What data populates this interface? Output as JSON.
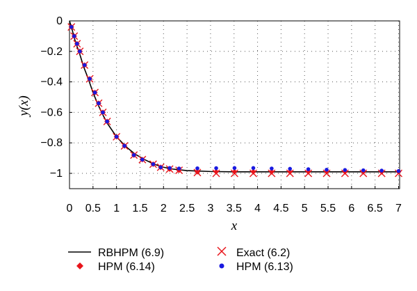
{
  "chart_data": {
    "type": "line",
    "xlabel": "x",
    "ylabel": "y(x)",
    "xlim": [
      0,
      7
    ],
    "ylim": [
      -1.1,
      0
    ],
    "x_ticks": [
      0,
      0.5,
      1,
      1.5,
      2,
      2.5,
      3,
      3.5,
      4,
      4.5,
      5,
      5.5,
      6,
      6.5,
      7
    ],
    "y_ticks": [
      0,
      -0.2,
      -0.4,
      -0.6,
      -0.8,
      -1
    ],
    "grid": true,
    "legend_position": "bottom",
    "series": [
      {
        "name": "RBHPM (6.9)",
        "style": "line",
        "color": "#000000",
        "x": [
          0,
          0.05,
          0.1,
          0.15,
          0.2,
          0.3,
          0.4,
          0.5,
          0.6,
          0.7,
          0.8,
          1.0,
          1.2,
          1.4,
          1.6,
          1.8,
          2.0,
          2.2,
          2.5,
          3.0,
          3.5,
          4.0,
          4.5,
          5.0,
          5.5,
          6.0,
          6.5,
          7.0
        ],
        "y": [
          0,
          -0.05,
          -0.11,
          -0.16,
          -0.2,
          -0.3,
          -0.38,
          -0.47,
          -0.545,
          -0.61,
          -0.67,
          -0.76,
          -0.825,
          -0.875,
          -0.91,
          -0.94,
          -0.96,
          -0.972,
          -0.982,
          -0.988,
          -0.99,
          -0.99,
          -0.99,
          -0.99,
          -0.99,
          -0.99,
          -0.99,
          -0.99
        ]
      },
      {
        "name": "Exact (6.2)",
        "style": "x-marker",
        "color": "#e8141a",
        "x": [
          0.04,
          0.1,
          0.16,
          0.22,
          0.32,
          0.43,
          0.54,
          0.62,
          0.71,
          0.8,
          1.0,
          1.17,
          1.37,
          1.55,
          1.78,
          1.94,
          2.13,
          2.33,
          2.72,
          3.12,
          3.51,
          3.91,
          4.3,
          4.69,
          5.08,
          5.47,
          5.86,
          6.25,
          6.64,
          7.0
        ],
        "y": [
          -0.04,
          -0.1,
          -0.15,
          -0.2,
          -0.29,
          -0.38,
          -0.47,
          -0.54,
          -0.6,
          -0.66,
          -0.76,
          -0.82,
          -0.88,
          -0.91,
          -0.94,
          -0.96,
          -0.972,
          -0.98,
          -0.995,
          -1.0,
          -1.0,
          -1.0,
          -1.0,
          -1.0,
          -1.0,
          -1.0,
          -1.0,
          -1.0,
          -1.0,
          -1.0
        ]
      },
      {
        "name": "HPM (6.14)",
        "style": "diamond-marker",
        "color": "#e8141a",
        "x": [
          0.04,
          0.1,
          0.16,
          0.22,
          0.32,
          0.43,
          0.54,
          0.62,
          0.71,
          0.8,
          1.0,
          1.17,
          1.37,
          1.55,
          1.78,
          1.94,
          2.13,
          2.33,
          2.72,
          3.12,
          3.51,
          3.91,
          4.3,
          4.69,
          5.08,
          5.47,
          5.86,
          6.25,
          6.64,
          7.0
        ],
        "y": [
          -0.04,
          -0.1,
          -0.15,
          -0.2,
          -0.29,
          -0.38,
          -0.47,
          -0.54,
          -0.6,
          -0.66,
          -0.76,
          -0.82,
          -0.88,
          -0.91,
          -0.94,
          -0.96,
          -0.972,
          -0.98,
          -0.99,
          -0.99,
          -0.99,
          -0.99,
          -0.99,
          -0.99,
          -0.99,
          -0.99,
          -0.99,
          -0.99,
          -0.99,
          -0.99
        ]
      },
      {
        "name": "HPM (6.13)",
        "style": "dot-marker",
        "color": "#1a1ae0",
        "x": [
          0.04,
          0.1,
          0.16,
          0.22,
          0.32,
          0.43,
          0.54,
          0.62,
          0.71,
          0.8,
          1.0,
          1.17,
          1.37,
          1.55,
          1.78,
          1.94,
          2.13,
          2.33,
          2.72,
          3.12,
          3.51,
          3.91,
          4.3,
          4.69,
          5.08,
          5.47,
          5.86,
          6.25,
          6.64,
          7.0
        ],
        "y": [
          -0.04,
          -0.1,
          -0.15,
          -0.2,
          -0.29,
          -0.38,
          -0.47,
          -0.54,
          -0.6,
          -0.66,
          -0.76,
          -0.82,
          -0.88,
          -0.91,
          -0.94,
          -0.96,
          -0.965,
          -0.968,
          -0.967,
          -0.966,
          -0.965,
          -0.965,
          -0.968,
          -0.97,
          -0.973,
          -0.976,
          -0.978,
          -0.98,
          -0.982,
          -0.985
        ]
      }
    ]
  }
}
